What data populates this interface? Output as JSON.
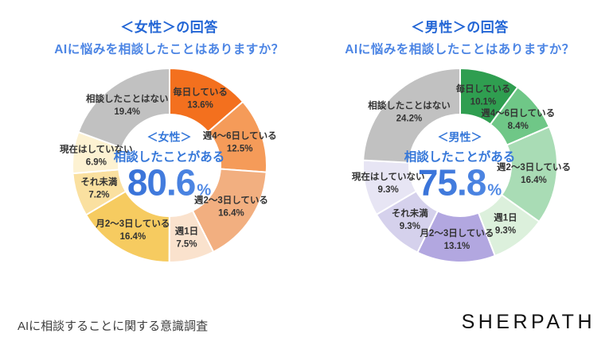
{
  "page": {
    "footer_note": "AIに相談することに関する意識調査",
    "brand_logo": "SHERPATH"
  },
  "colors": {
    "title_line1": "#2265D5",
    "title_line2": "#4C85E4",
    "center_text": "#3577D9",
    "number_gradient_start": "#2B66D2",
    "number_gradient_end": "#5E96EB",
    "number_solid_fallback": "#3A79DC",
    "segment_label": "#333333",
    "footer_note": "#3D3D3D",
    "logo": "#111111",
    "slice_separator": "#FFFFFF"
  },
  "chart_data": [
    {
      "type": "pie",
      "id": "female",
      "donut": true,
      "start_angle_deg": 0,
      "direction": "clockwise",
      "legend_position": "labels-inside-slices",
      "title_line1": "＜女性＞の回答",
      "title_line2": "AIに悩みを相談したことはありますか？",
      "center": {
        "line1": "＜女性＞",
        "line2": "相談したことがある",
        "value": "80.6",
        "unit": "%"
      },
      "segments": [
        {
          "label": "毎日している",
          "value": 13.6,
          "display": "13.6%",
          "color": "#F3701E"
        },
        {
          "label": "週4〜6日している",
          "value": 12.5,
          "display": "12.5%",
          "color": "#F59B59"
        },
        {
          "label": "週2〜3日している",
          "value": 16.4,
          "display": "16.4%",
          "color": "#F2AF80"
        },
        {
          "label": "週1日",
          "value": 7.5,
          "display": "7.5%",
          "color": "#FAE2CD"
        },
        {
          "label": "月2〜3日している",
          "value": 16.4,
          "display": "16.4%",
          "color": "#F6CB60"
        },
        {
          "label": "それ未満",
          "value": 7.2,
          "display": "7.2%",
          "color": "#FAE0A0"
        },
        {
          "label": "現在はしていない",
          "value": 6.9,
          "display": "6.9%",
          "color": "#FDF2D2"
        },
        {
          "label": "相談したことはない",
          "value": 19.4,
          "display": "19.4%",
          "color": "#C1C1C1"
        }
      ]
    },
    {
      "type": "pie",
      "id": "male",
      "donut": true,
      "start_angle_deg": 0,
      "direction": "clockwise",
      "legend_position": "labels-inside-slices",
      "title_line1": "＜男性＞の回答",
      "title_line2": "AIに悩みを相談したことはありますか？",
      "center": {
        "line1": "＜男性＞",
        "line2": "相談したことがある",
        "value": "75.8",
        "unit": "%"
      },
      "segments": [
        {
          "label": "毎日している",
          "value": 10.1,
          "display": "10.1%",
          "color": "#2F9E50"
        },
        {
          "label": "週4〜6日している",
          "value": 8.4,
          "display": "8.4%",
          "color": "#6FC787"
        },
        {
          "label": "週2〜3日している",
          "value": 16.4,
          "display": "16.4%",
          "color": "#A9DCB5"
        },
        {
          "label": "週1日",
          "value": 9.3,
          "display": "9.3%",
          "color": "#DCF0DC"
        },
        {
          "label": "月2〜3日している",
          "value": 13.1,
          "display": "13.1%",
          "color": "#B2A7E0"
        },
        {
          "label": "それ未満",
          "value": 9.3,
          "display": "9.3%",
          "color": "#D5D1EC"
        },
        {
          "label": "現在はしていない",
          "value": 9.3,
          "display": "9.3%",
          "color": "#E7E5F4"
        },
        {
          "label": "相談したことはない",
          "value": 24.2,
          "display": "24.2%",
          "color": "#C1C1C1"
        }
      ]
    }
  ]
}
